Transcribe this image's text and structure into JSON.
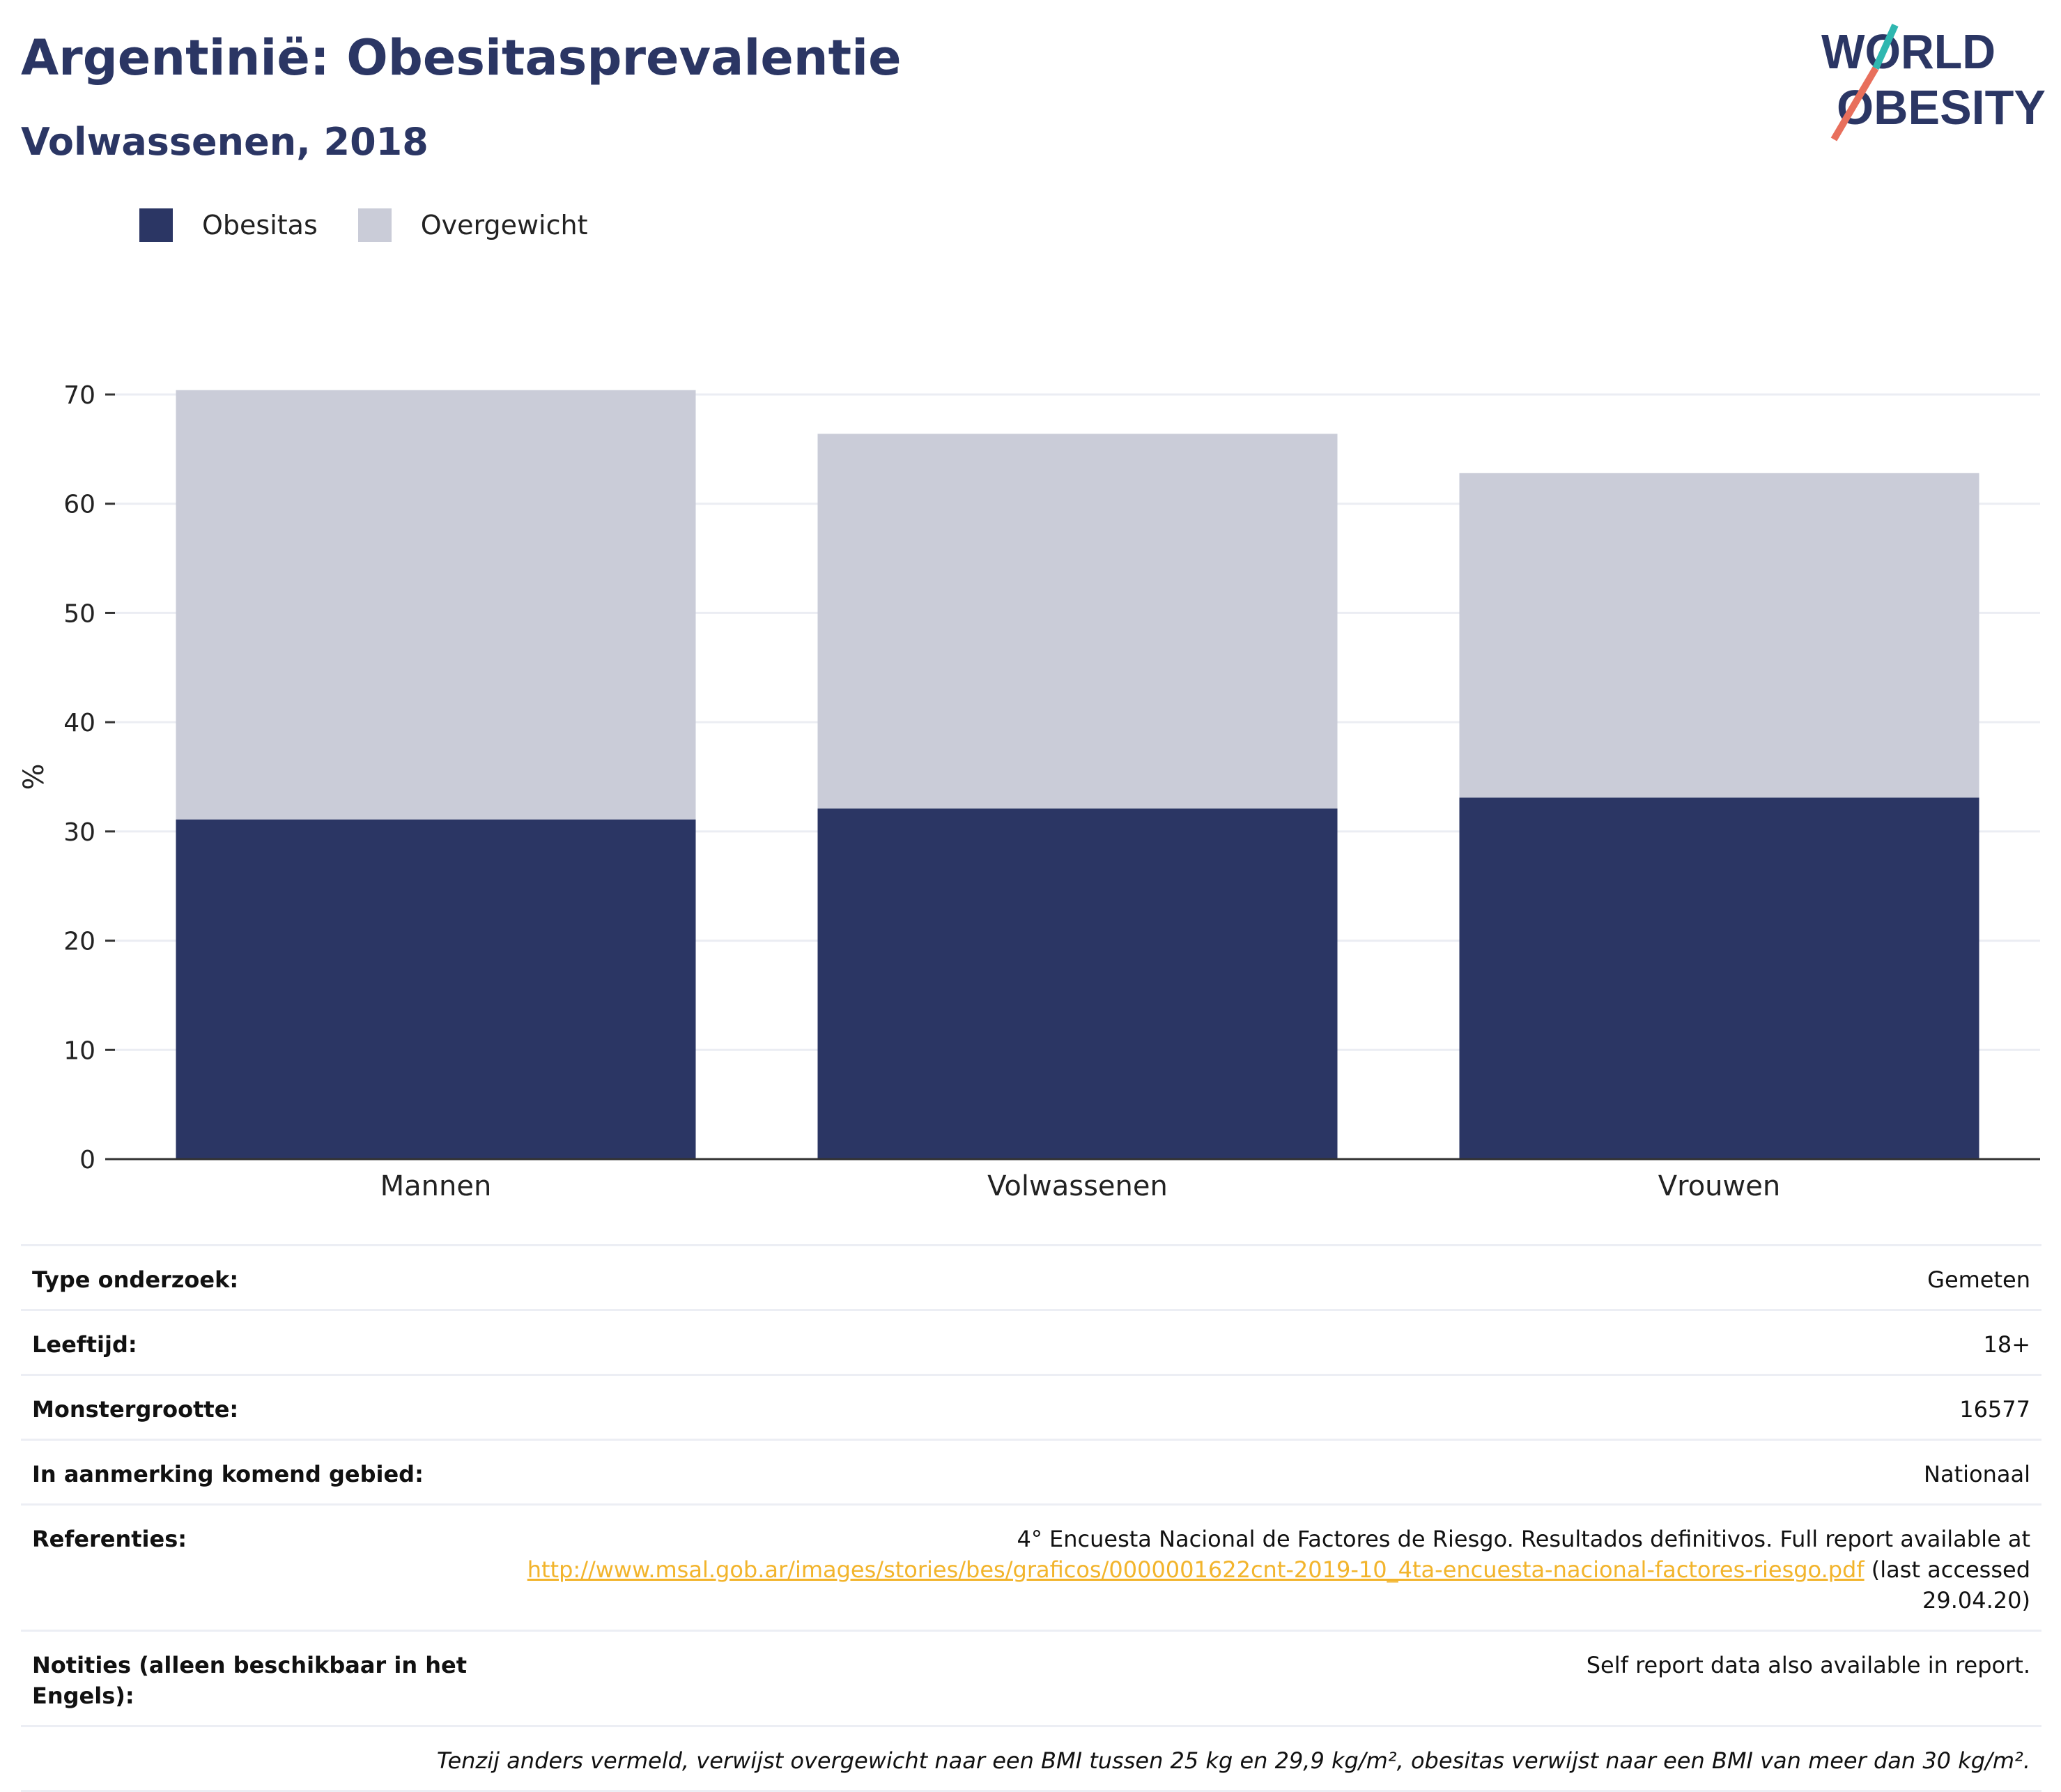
{
  "header": {
    "title": "Argentinië: Obesitasprevalentie",
    "subtitle": "Volwassenen, 2018"
  },
  "logo": {
    "line1": "WORLD",
    "line2": "OBESITY"
  },
  "colors": {
    "obesity": "#2b3664",
    "overweight": "#caccd8",
    "title": "#2b3664",
    "link": "#f2b42c"
  },
  "legend": {
    "obesity_label": "Obesitas",
    "overweight_label": "Overgewicht"
  },
  "chart_data": {
    "type": "bar",
    "stacked": true,
    "categories": [
      "Mannen",
      "Volwassenen",
      "Vrouwen"
    ],
    "series": [
      {
        "name": "Obesitas",
        "values": [
          31.1,
          32.1,
          33.1
        ]
      },
      {
        "name": "Overgewicht",
        "values": [
          39.3,
          34.3,
          29.7
        ]
      }
    ],
    "ylabel": "%",
    "ylim": [
      0,
      70
    ],
    "yticks": [
      0,
      10,
      20,
      30,
      40,
      50,
      60,
      70
    ],
    "grid": true,
    "legend_position": "top-left"
  },
  "info": {
    "type_label": "Type onderzoek:",
    "type_value": "Gemeten",
    "age_label": "Leeftijd:",
    "age_value": "18+",
    "sample_label": "Monstergrootte:",
    "sample_value": "16577",
    "area_label": "In aanmerking komend gebied:",
    "area_value": "Nationaal",
    "ref_label": "Referenties:",
    "ref_text_before": "4° Encuesta Nacional de Factores de Riesgo. Resultados definitivos. Full report available at",
    "ref_link": "http://www.msal.gob.ar/images/stories/bes/graficos/0000001622cnt-2019-10_4ta-encuesta-nacional-factores-riesgo.pdf",
    "ref_text_after": "(last accessed 29.04.20)",
    "notes_label": "Notities (alleen beschikbaar in het Engels):",
    "notes_value": "Self report data also available in report.",
    "footnote": "Tenzij anders vermeld, verwijst overgewicht naar een BMI tussen 25 kg en 29,9 kg/m², obesitas verwijst naar een BMI van meer dan 30 kg/m²."
  }
}
